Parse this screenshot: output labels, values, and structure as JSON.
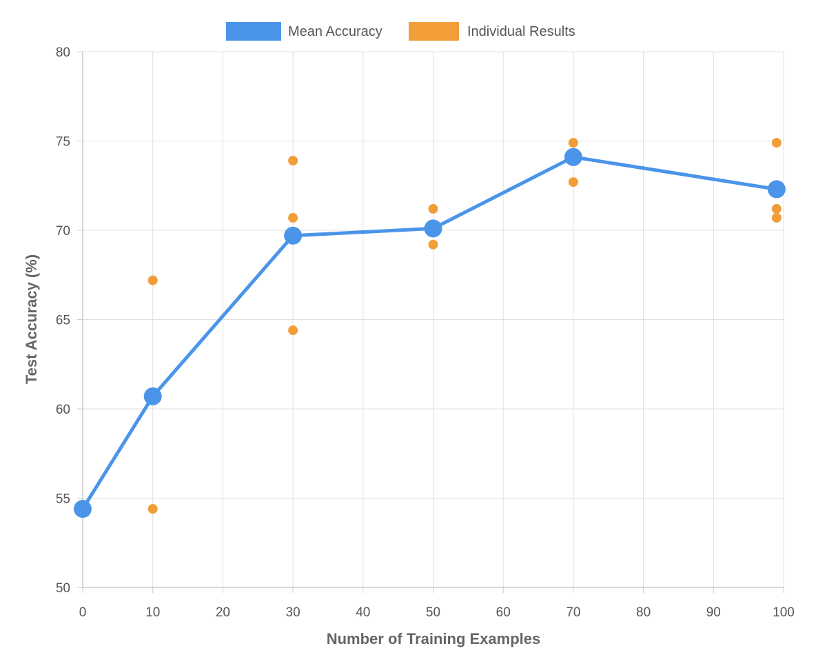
{
  "chart_data": {
    "type": "line",
    "xlabel": "Number of Training Examples",
    "ylabel": "Test Accuracy (%)",
    "xlim": [
      0,
      100
    ],
    "ylim": [
      50,
      80
    ],
    "x_ticks": [
      0,
      10,
      20,
      30,
      40,
      50,
      60,
      70,
      80,
      90,
      100
    ],
    "y_ticks": [
      50,
      55,
      60,
      65,
      70,
      75,
      80
    ],
    "grid": true,
    "legend_placement": "top-center",
    "series": [
      {
        "name": "Mean Accuracy",
        "type": "line",
        "color": "#4a94ea",
        "points": [
          {
            "x": 0,
            "y": 54.4
          },
          {
            "x": 10,
            "y": 60.7
          },
          {
            "x": 30,
            "y": 69.7
          },
          {
            "x": 50,
            "y": 70.1
          },
          {
            "x": 70,
            "y": 74.1
          },
          {
            "x": 99,
            "y": 72.3
          }
        ]
      },
      {
        "name": "Individual Results",
        "type": "scatter",
        "color": "#f19e38",
        "points": [
          {
            "x": 10,
            "y": 67.2
          },
          {
            "x": 10,
            "y": 54.4
          },
          {
            "x": 30,
            "y": 73.9
          },
          {
            "x": 30,
            "y": 70.7
          },
          {
            "x": 30,
            "y": 64.4
          },
          {
            "x": 50,
            "y": 71.2
          },
          {
            "x": 50,
            "y": 69.2
          },
          {
            "x": 70,
            "y": 74.9
          },
          {
            "x": 70,
            "y": 72.7
          },
          {
            "x": 99,
            "y": 74.9
          },
          {
            "x": 99,
            "y": 71.2
          },
          {
            "x": 99,
            "y": 70.7
          }
        ]
      }
    ]
  }
}
